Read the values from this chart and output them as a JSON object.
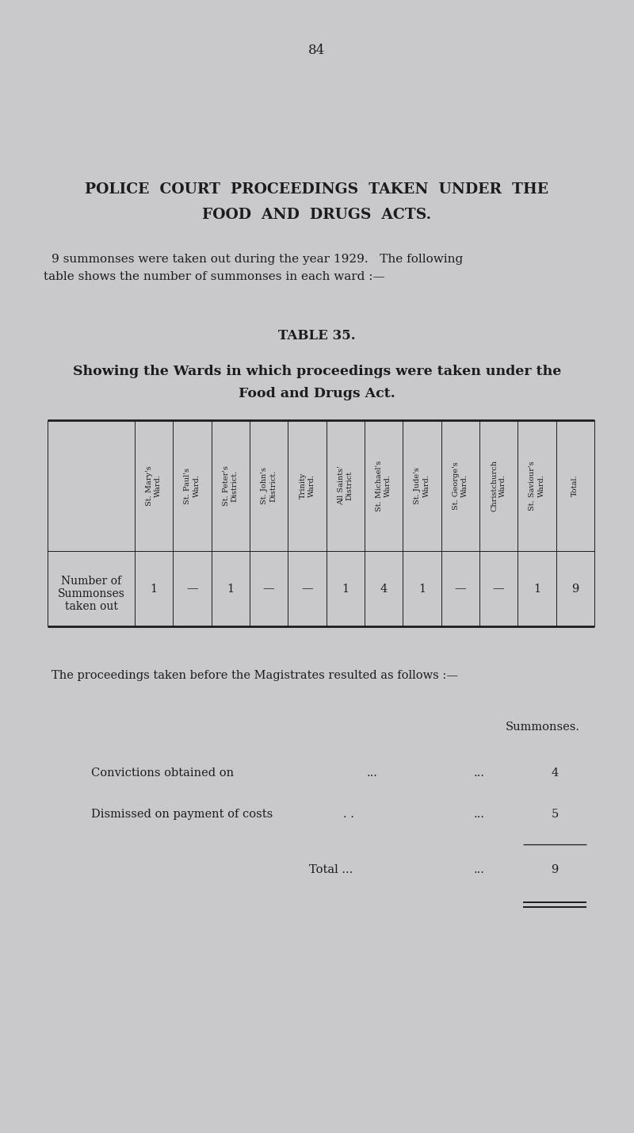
{
  "page_number": "84",
  "bg_color": "#c9c9cc",
  "text_color": "#1c1c1c",
  "title_line1": "POLICE  COURT  PROCEEDINGS  TAKEN  UNDER  THE",
  "title_line2": "FOOD  AND  DRUGS  ACTS.",
  "intro_line1": "9 summonses were taken out during the year 1929.   The following",
  "intro_line2": "table shows the number of summonses in each ward :—",
  "table_title": "TABLE 35.",
  "table_subtitle_line1": "Showing the Wards in which proceedings were taken under the",
  "table_subtitle_line2": "Food and Drugs Act.",
  "col_headers": [
    "St. Mary's\nWard.",
    "St. Paul's\nWard.",
    "St. Peter's\nDistrict.",
    "St. John's\nDistrict.",
    "Trinity\nWard.",
    "All Saints'\nDistrict",
    "St. Michael's\nWard.",
    "St. Jude's\nWard.",
    "St. George's\nWard.",
    "Christchurch\nWard.",
    "St. Saviour's\nWard.",
    "Total."
  ],
  "row_label_line1": "Number of",
  "row_label_line2": "Summonses",
  "row_label_line3": "taken out",
  "row_values": [
    "1",
    "—",
    "1",
    "—",
    "—",
    "1",
    "4",
    "1",
    "—",
    "—",
    "1",
    "9"
  ],
  "proceedings_text": "The proceedings taken before the Magistrates resulted as follows :—",
  "summonses_label": "Summonses.",
  "conviction_label": "Convictions obtained on",
  "conviction_dots1": "...",
  "conviction_dots2": "...",
  "conviction_value": "4",
  "dismissed_label": "Dismissed on payment of costs",
  "dismissed_dots1": ". .",
  "dismissed_dots2": "...",
  "dismissed_value": "5",
  "total_label": "Total ...",
  "total_dots": "...",
  "total_value": "9"
}
